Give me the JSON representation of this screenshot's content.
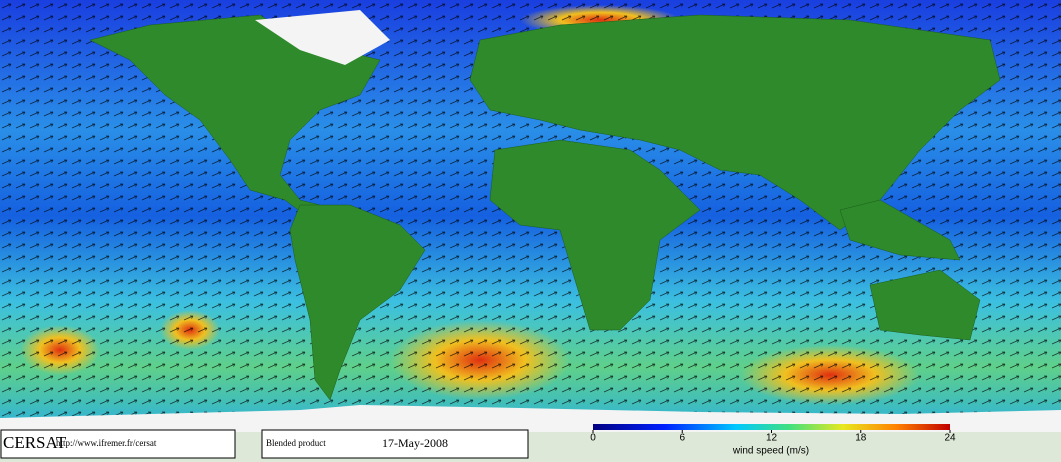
{
  "footer": {
    "logo": "CERSAT",
    "url": "http://www.ifremer.fr/cersat",
    "product": "Blended product",
    "date": "17-May-2008"
  },
  "colorbar": {
    "label": "wind speed (m/s)",
    "range": [
      0,
      24
    ],
    "ticks": [
      0,
      6,
      12,
      18,
      24
    ]
  }
}
